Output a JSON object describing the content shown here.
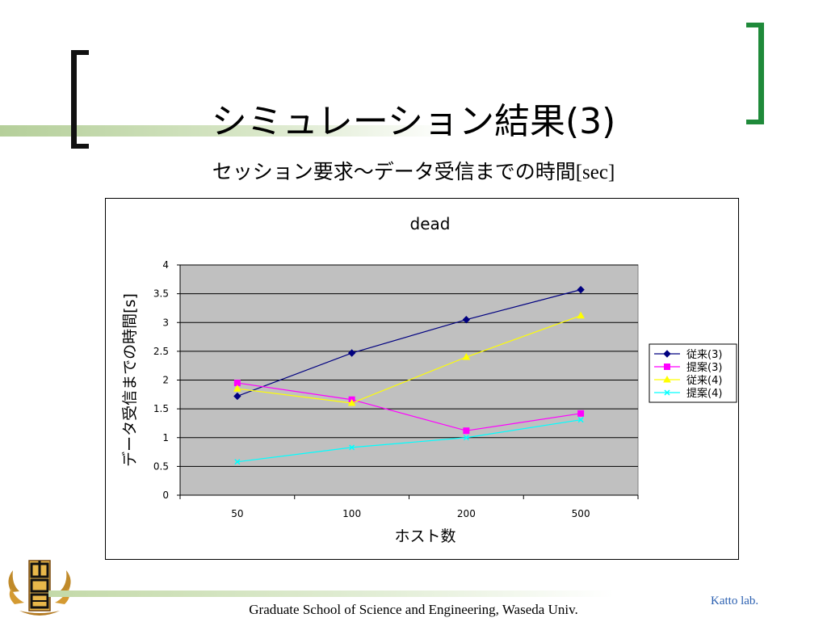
{
  "slide": {
    "title": "シミュレーション結果(3)",
    "subtitle_main": "セッション要求～データ受信までの時間",
    "subtitle_unit": "[sec]",
    "footer": "Graduate School of Science and Engineering, Waseda Univ.",
    "lab": "Katto lab.",
    "logo_icon": "university-crest-icon"
  },
  "chart_data": {
    "type": "line",
    "title": "dead",
    "xlabel": "ホスト数",
    "ylabel": "データ受信までの時間[s]",
    "categories": [
      "50",
      "100",
      "200",
      "500"
    ],
    "ylim": [
      0,
      4
    ],
    "yticks": [
      "0",
      "0.5",
      "1",
      "1.5",
      "2",
      "2.5",
      "3",
      "3.5",
      "4"
    ],
    "grid": true,
    "legend_position": "right",
    "plot_background": "#c0c0c0",
    "series": [
      {
        "name": "従来(3)",
        "values": [
          1.72,
          2.47,
          3.05,
          3.57
        ],
        "color": "#000080",
        "marker": "diamond"
      },
      {
        "name": "提案(3)",
        "values": [
          1.95,
          1.66,
          1.12,
          1.42
        ],
        "color": "#ff00ff",
        "marker": "square"
      },
      {
        "name": "従来(4)",
        "values": [
          1.85,
          1.6,
          2.4,
          3.12
        ],
        "color": "#ffff00",
        "marker": "triangle"
      },
      {
        "name": "提案(4)",
        "values": [
          0.58,
          0.83,
          1.0,
          1.31
        ],
        "color": "#00ffff",
        "marker": "x"
      }
    ]
  }
}
